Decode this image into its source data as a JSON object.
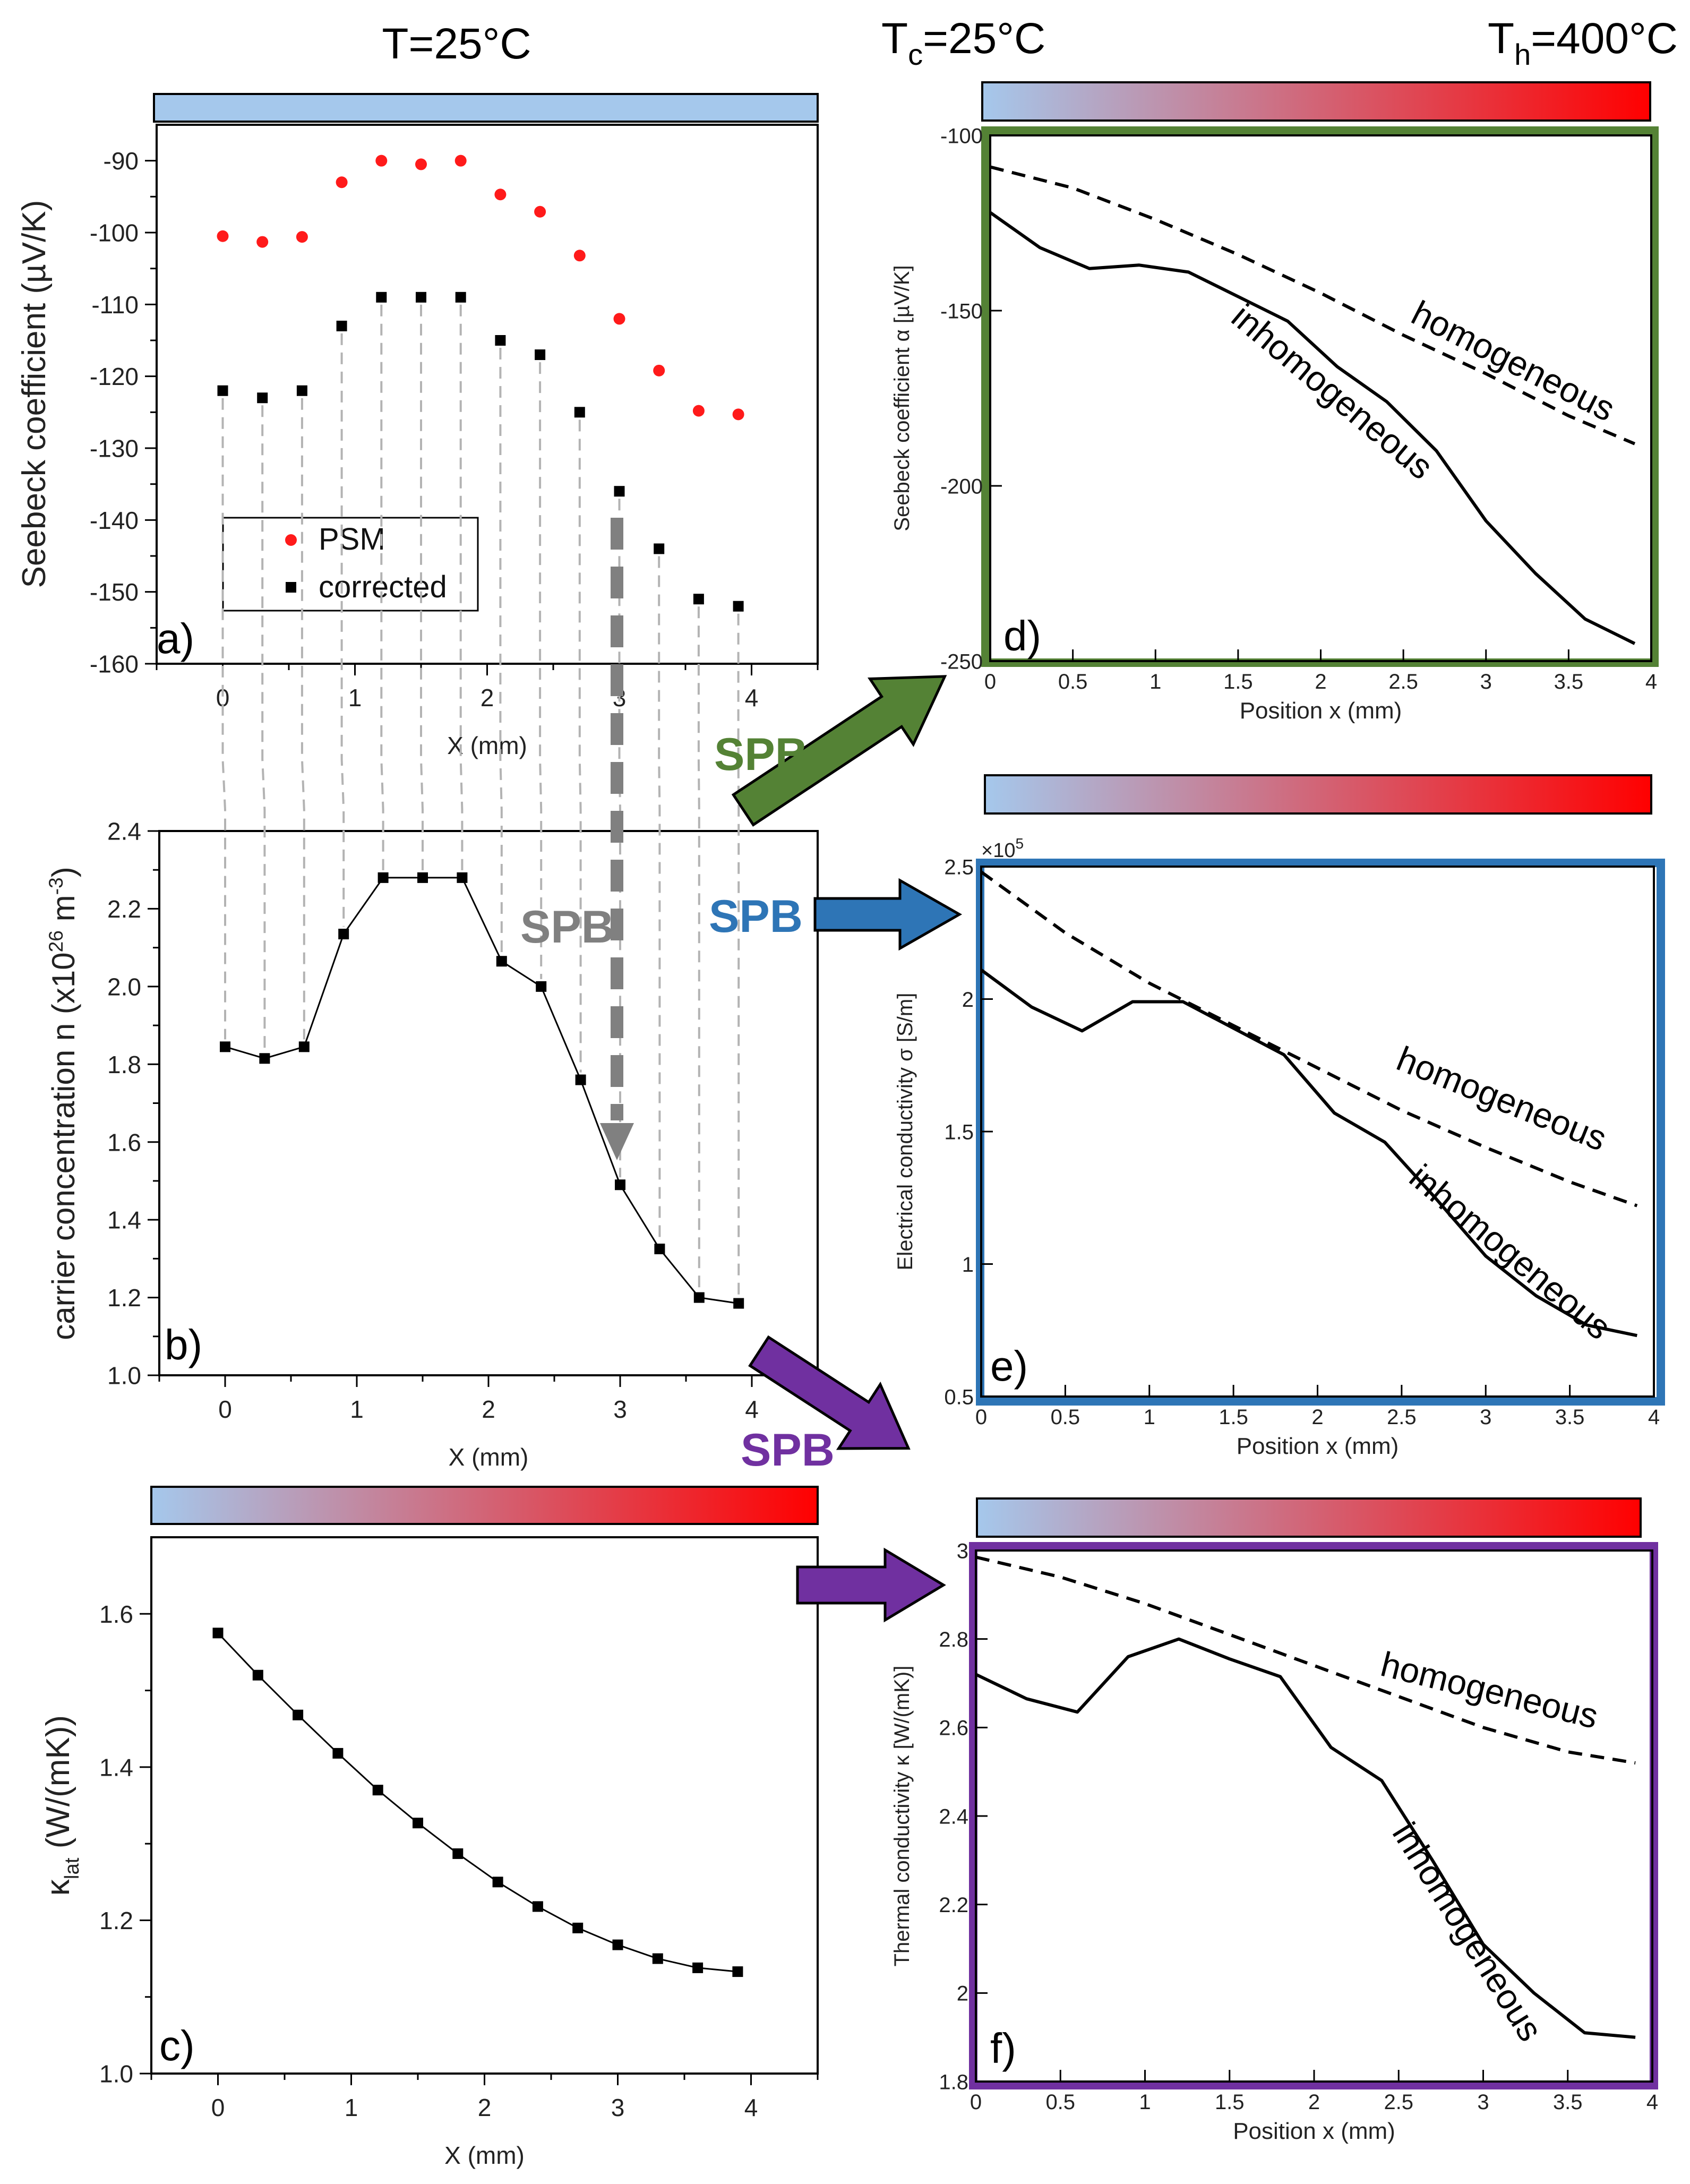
{
  "headers": {
    "left": "T=25°C",
    "cold": "T",
    "cold_sub": "c",
    "cold_rest": "=25°C",
    "hot": "T",
    "hot_sub": "h",
    "hot_rest": "=400°C"
  },
  "colors": {
    "cold": "#a5c8ec",
    "hot": "#ff0000",
    "psm": "#ff1a1a",
    "corrected": "#000000",
    "frame_d": "#548235",
    "frame_e": "#2e75b6",
    "frame_f": "#7030a0",
    "spb_gray": "#808080"
  },
  "arrows": {
    "spb_main": "SPB",
    "spb_green": "SPB",
    "spb_blue": "SPB",
    "spb_purple": "SPB"
  },
  "chart_data": [
    {
      "id": "a",
      "type": "scatter",
      "panel_label": "a)",
      "xlabel": "X (mm)",
      "ylabel": "Seebeck coefficient (µV/K)",
      "xlim": [
        -0.5,
        4.5
      ],
      "ylim": [
        -160,
        -85
      ],
      "xticks": [
        "0",
        "1",
        "2",
        "3",
        "4"
      ],
      "xtick_values": [
        0,
        1,
        2,
        3,
        4
      ],
      "yticks": [
        "-160",
        "-150",
        "-140",
        "-130",
        "-120",
        "-110",
        "-100",
        "-90"
      ],
      "ytick_values": [
        -160,
        -150,
        -140,
        -130,
        -120,
        -110,
        -100,
        -90
      ],
      "legend": [
        "PSM",
        "corrected"
      ],
      "series": [
        {
          "name": "PSM",
          "x": [
            0,
            0.3,
            0.6,
            0.9,
            1.2,
            1.5,
            1.8,
            2.1,
            2.4,
            2.7,
            3.0,
            3.3,
            3.6,
            3.9
          ],
          "values": [
            -100.5,
            -101.3,
            -100.6,
            -93,
            -90,
            -90.5,
            -90,
            -94.7,
            -97.1,
            -103.2,
            -112,
            -119.2,
            -124.8,
            -125.3
          ]
        },
        {
          "name": "corrected",
          "x": [
            0,
            0.3,
            0.6,
            0.9,
            1.2,
            1.5,
            1.8,
            2.1,
            2.4,
            2.7,
            3.0,
            3.3,
            3.6,
            3.9
          ],
          "values": [
            -122,
            -123,
            -122,
            -113,
            -109,
            -109,
            -109,
            -115,
            -117,
            -125,
            -136,
            -144,
            -151,
            -152
          ]
        }
      ]
    },
    {
      "id": "b",
      "type": "line",
      "panel_label": "b)",
      "xlabel": "X (mm)",
      "ylabel": "carrier concentration n (x10",
      "ylabel_sup": "26",
      "ylabel_mid": " m",
      "ylabel_sup2": "-3",
      "ylabel_end": ")",
      "xlim": [
        -0.5,
        4.5
      ],
      "ylim": [
        1.0,
        2.4
      ],
      "xticks": [
        "0",
        "1",
        "2",
        "3",
        "4"
      ],
      "xtick_values": [
        0,
        1,
        2,
        3,
        4
      ],
      "yticks": [
        "1.0",
        "1.2",
        "1.4",
        "1.6",
        "1.8",
        "2.0",
        "2.2",
        "2.4"
      ],
      "ytick_values": [
        1.0,
        1.2,
        1.4,
        1.6,
        1.8,
        2.0,
        2.2,
        2.4
      ],
      "series": [
        {
          "name": "n",
          "x": [
            0,
            0.3,
            0.6,
            0.9,
            1.2,
            1.5,
            1.8,
            2.1,
            2.4,
            2.7,
            3.0,
            3.3,
            3.6,
            3.9
          ],
          "values": [
            1.845,
            1.815,
            1.845,
            2.135,
            2.28,
            2.28,
            2.28,
            2.065,
            2.0,
            1.76,
            1.49,
            1.325,
            1.2,
            1.185
          ]
        }
      ]
    },
    {
      "id": "c",
      "type": "line",
      "panel_label": "c)",
      "xlabel": "X (mm)",
      "ylabel": "κ",
      "ylabel_sub": "lat",
      "ylabel_end": " (W/(mK))",
      "xlim": [
        -0.5,
        4.5
      ],
      "ylim": [
        1.0,
        1.7
      ],
      "xticks": [
        "0",
        "1",
        "2",
        "3",
        "4"
      ],
      "xtick_values": [
        0,
        1,
        2,
        3,
        4
      ],
      "yticks": [
        "1.0",
        "1.2",
        "1.4",
        "1.6"
      ],
      "ytick_values": [
        1.0,
        1.2,
        1.4,
        1.6
      ],
      "series": [
        {
          "name": "kappa_lat",
          "x": [
            0,
            0.3,
            0.6,
            0.9,
            1.2,
            1.5,
            1.8,
            2.1,
            2.4,
            2.7,
            3.0,
            3.3,
            3.6,
            3.9
          ],
          "values": [
            1.575,
            1.52,
            1.468,
            1.418,
            1.37,
            1.327,
            1.287,
            1.25,
            1.218,
            1.19,
            1.168,
            1.15,
            1.138,
            1.133
          ]
        }
      ]
    },
    {
      "id": "d",
      "type": "line",
      "panel_label": "d)",
      "xlabel": "Position x (mm)",
      "ylabel": "Seebeck coefficient α [µV/K]",
      "xlim": [
        0,
        4
      ],
      "ylim": [
        -250,
        -100
      ],
      "xticks": [
        "0",
        "0.5",
        "1",
        "1.5",
        "2",
        "2.5",
        "3",
        "3.5",
        "4"
      ],
      "xtick_values": [
        0,
        0.5,
        1,
        1.5,
        2,
        2.5,
        3,
        3.5,
        4
      ],
      "yticks": [
        "-250",
        "-200",
        "-150",
        "-100"
      ],
      "ytick_values": [
        -250,
        -200,
        -150,
        -100
      ],
      "annotations": [
        "homogeneous",
        "inhomogeneous"
      ],
      "series": [
        {
          "name": "homogeneous",
          "style": "dashed",
          "x": [
            0,
            0.5,
            1.0,
            1.5,
            2.0,
            2.5,
            3.0,
            3.5,
            3.9
          ],
          "values": [
            -109,
            -115,
            -124,
            -134,
            -145,
            -157,
            -168,
            -180,
            -188
          ]
        },
        {
          "name": "inhomogeneous",
          "style": "solid",
          "x": [
            0,
            0.3,
            0.6,
            0.9,
            1.2,
            1.5,
            1.8,
            2.1,
            2.4,
            2.7,
            3.0,
            3.3,
            3.6,
            3.9
          ],
          "values": [
            -122,
            -132,
            -138,
            -137,
            -139,
            -146,
            -153,
            -166,
            -176,
            -190,
            -210,
            -225,
            -238,
            -245
          ]
        }
      ]
    },
    {
      "id": "e",
      "type": "line",
      "panel_label": "e)",
      "xlabel": "Position x (mm)",
      "ylabel": "Electrical conductivity σ [S/m]",
      "multiplier": "×10",
      "multiplier_exp": "5",
      "xlim": [
        0,
        4
      ],
      "ylim": [
        0.5,
        2.5
      ],
      "xticks": [
        "0",
        "0.5",
        "1",
        "1.5",
        "2",
        "2.5",
        "3",
        "3.5",
        "4"
      ],
      "xtick_values": [
        0,
        0.5,
        1,
        1.5,
        2,
        2.5,
        3,
        3.5,
        4
      ],
      "yticks": [
        "0.5",
        "1",
        "1.5",
        "2",
        "2.5"
      ],
      "ytick_values": [
        0.5,
        1,
        1.5,
        2,
        2.5
      ],
      "annotations": [
        "homogeneous",
        "inhomogeneous"
      ],
      "series": [
        {
          "name": "homogeneous",
          "style": "dashed",
          "x": [
            0,
            0.5,
            1.0,
            1.5,
            2.0,
            2.5,
            3.0,
            3.5,
            3.9
          ],
          "values": [
            2.48,
            2.25,
            2.06,
            1.9,
            1.74,
            1.58,
            1.44,
            1.31,
            1.22
          ]
        },
        {
          "name": "inhomogeneous",
          "style": "solid",
          "x": [
            0,
            0.3,
            0.6,
            0.9,
            1.2,
            1.5,
            1.8,
            2.1,
            2.4,
            2.7,
            3.0,
            3.3,
            3.6,
            3.9
          ],
          "values": [
            2.11,
            1.97,
            1.88,
            1.99,
            1.99,
            1.89,
            1.79,
            1.57,
            1.46,
            1.25,
            1.03,
            0.88,
            0.77,
            0.73
          ]
        }
      ]
    },
    {
      "id": "f",
      "type": "line",
      "panel_label": "f)",
      "xlabel": "Position x (mm)",
      "ylabel": "Thermal conductivity κ [W/(mK)]",
      "xlim": [
        0,
        4
      ],
      "ylim": [
        1.8,
        3.0
      ],
      "xticks": [
        "0",
        "0.5",
        "1",
        "1.5",
        "2",
        "2.5",
        "3",
        "3.5",
        "4"
      ],
      "xtick_values": [
        0,
        0.5,
        1,
        1.5,
        2,
        2.5,
        3,
        3.5,
        4
      ],
      "yticks": [
        "1.8",
        "2",
        "2.2",
        "2.4",
        "2.6",
        "2.8",
        "3"
      ],
      "ytick_values": [
        1.8,
        2.0,
        2.2,
        2.4,
        2.6,
        2.8,
        3.0
      ],
      "annotations": [
        "homogeneous",
        "inhomogeneous"
      ],
      "series": [
        {
          "name": "homogeneous",
          "style": "dashed",
          "x": [
            0,
            0.5,
            1.0,
            1.5,
            2.0,
            2.5,
            3.0,
            3.5,
            3.9
          ],
          "values": [
            2.985,
            2.94,
            2.88,
            2.81,
            2.74,
            2.67,
            2.6,
            2.545,
            2.52
          ]
        },
        {
          "name": "inhomogeneous",
          "style": "solid",
          "x": [
            0,
            0.3,
            0.6,
            0.9,
            1.2,
            1.5,
            1.8,
            2.1,
            2.4,
            2.7,
            3.0,
            3.3,
            3.6,
            3.9
          ],
          "values": [
            2.72,
            2.665,
            2.635,
            2.76,
            2.8,
            2.755,
            2.715,
            2.555,
            2.48,
            2.3,
            2.11,
            2.0,
            1.91,
            1.9
          ]
        }
      ]
    }
  ]
}
